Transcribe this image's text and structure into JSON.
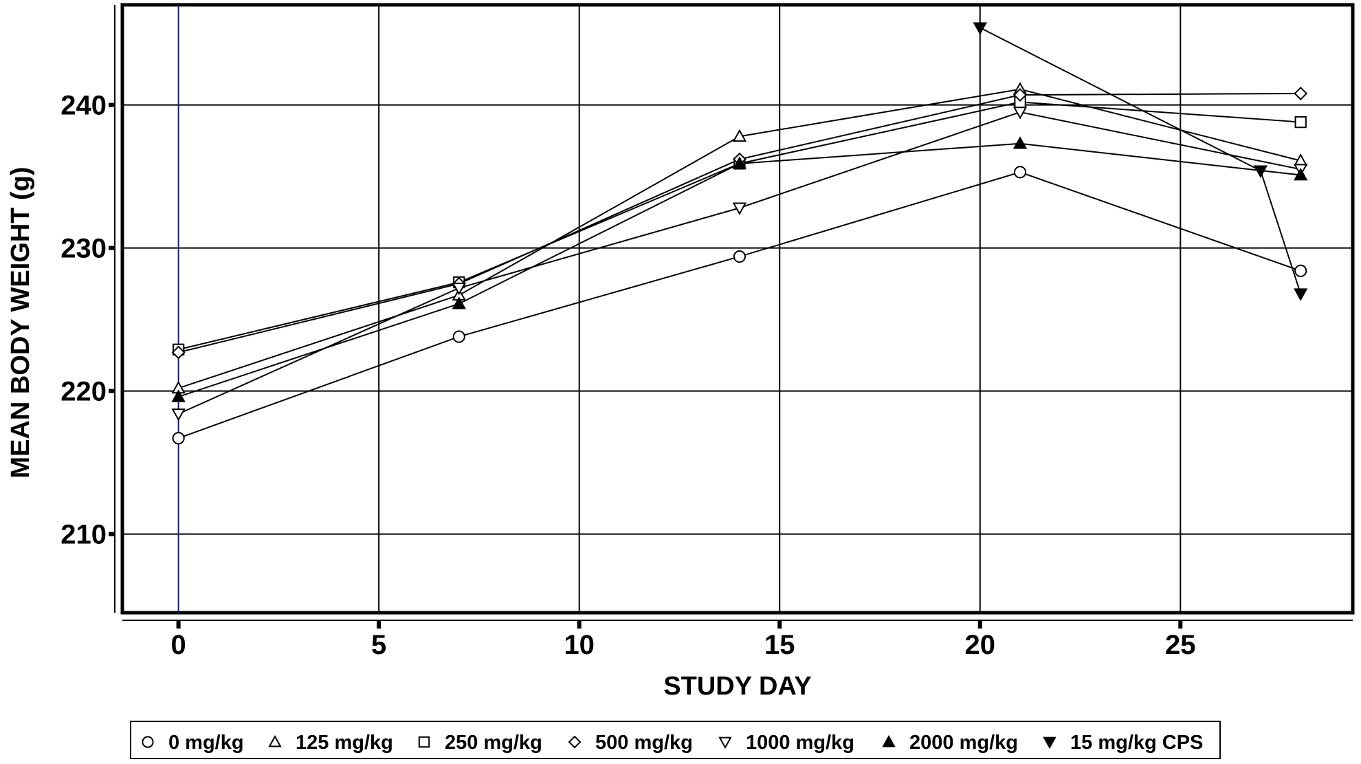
{
  "chart_data": {
    "type": "line",
    "xlabel": "STUDY DAY",
    "ylabel": "MEAN BODY WEIGHT (g)",
    "xlim": [
      -1.4,
      29.3
    ],
    "ylim": [
      204.5,
      247
    ],
    "xticks": [
      0,
      5,
      10,
      15,
      20,
      25
    ],
    "yticks": [
      210,
      220,
      230,
      240
    ],
    "grid": true,
    "legend_position": "bottom",
    "series": [
      {
        "name": "0 mg/kg",
        "marker": "circle-open",
        "x": [
          0,
          7,
          14,
          21,
          28
        ],
        "y": [
          216.7,
          223.8,
          229.4,
          235.3,
          228.4
        ]
      },
      {
        "name": "125 mg/kg",
        "marker": "triangle-up-open",
        "x": [
          0,
          7,
          14,
          21,
          28
        ],
        "y": [
          220.2,
          226.7,
          237.8,
          241.1,
          236.1
        ]
      },
      {
        "name": "250 mg/kg",
        "marker": "square-open",
        "x": [
          0,
          7,
          14,
          21,
          28
        ],
        "y": [
          222.9,
          227.6,
          235.9,
          240.2,
          238.8
        ]
      },
      {
        "name": "500 mg/kg",
        "marker": "diamond-open",
        "x": [
          0,
          7,
          14,
          21,
          28
        ],
        "y": [
          222.7,
          227.5,
          236.2,
          240.7,
          240.8
        ]
      },
      {
        "name": "1000 mg/kg",
        "marker": "triangle-down-open",
        "x": [
          0,
          7,
          14,
          21,
          28
        ],
        "y": [
          218.4,
          227.2,
          232.8,
          239.5,
          235.5
        ]
      },
      {
        "name": "2000 mg/kg",
        "marker": "triangle-up-filled",
        "x": [
          0,
          7,
          14,
          21,
          28
        ],
        "y": [
          219.6,
          226.1,
          235.9,
          237.3,
          235.1
        ]
      },
      {
        "name": "15 mg/kg CPS",
        "marker": "triangle-down-filled",
        "x": [
          20,
          27,
          28
        ],
        "y": [
          245.4,
          235.4,
          226.8
        ]
      }
    ]
  }
}
